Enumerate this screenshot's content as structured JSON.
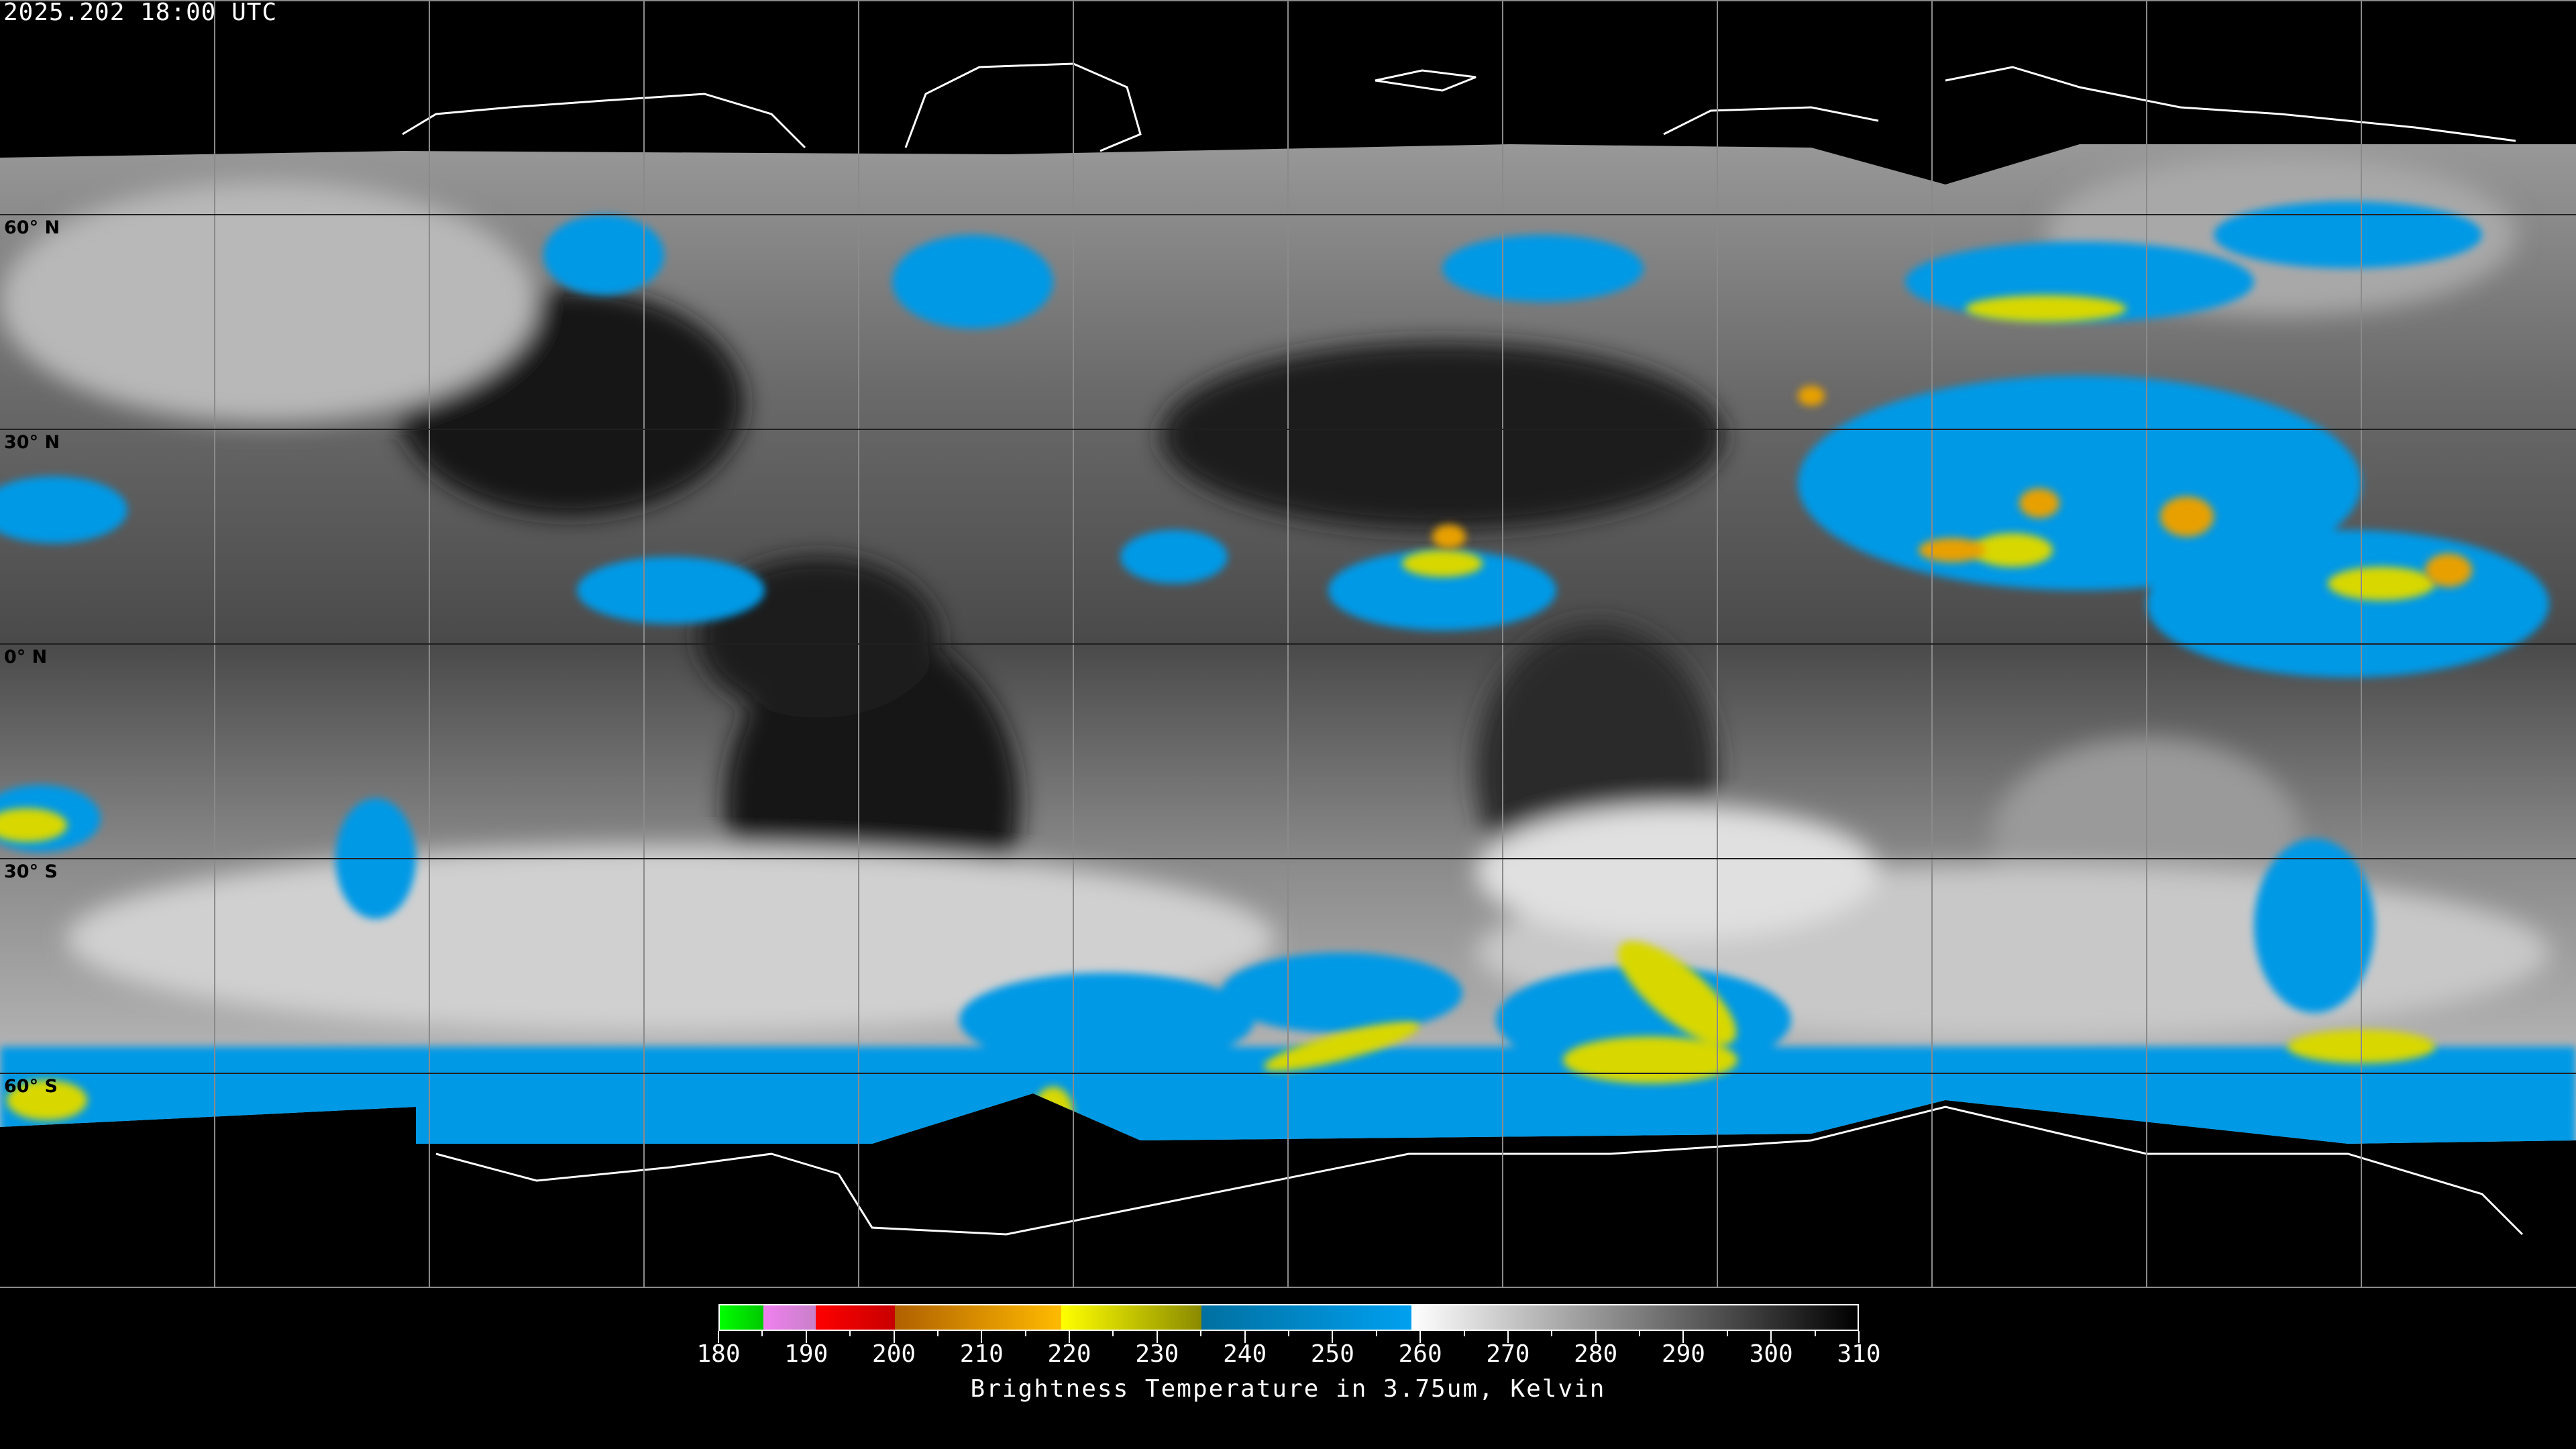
{
  "header": {
    "timestamp": "2025.202 18:00 UTC"
  },
  "map": {
    "projection": "equirectangular",
    "latitude_labels": [
      "60° N",
      "30° N",
      "0° N",
      "30° S",
      "60° S"
    ],
    "latitude_label_values": [
      60,
      30,
      0,
      -30,
      -60
    ],
    "gridline_spacing_degrees": 30,
    "gridline_color": "#8a8a8a",
    "coastline_color": "#ffffff"
  },
  "colorbar": {
    "title": "Brightness Temperature in 3.75um, Kelvin",
    "min": 180,
    "max": 310,
    "tick_labels": [
      "180",
      "190",
      "200",
      "210",
      "220",
      "230",
      "240",
      "250",
      "260",
      "270",
      "280",
      "290",
      "300",
      "310"
    ],
    "segments": [
      {
        "from": 180,
        "to": 185,
        "start_color": "#00ff00",
        "end_color": "#00c800"
      },
      {
        "from": 185,
        "to": 191,
        "start_color": "#f080f0",
        "end_color": "#c880c8"
      },
      {
        "from": 191,
        "to": 200,
        "start_color": "#ff0000",
        "end_color": "#c80000"
      },
      {
        "from": 200,
        "to": 219,
        "start_color": "#b06000",
        "end_color": "#ffbb00"
      },
      {
        "from": 219,
        "to": 235,
        "start_color": "#ffff00",
        "end_color": "#8a8a00"
      },
      {
        "from": 235,
        "to": 259,
        "start_color": "#0070a0",
        "end_color": "#00a0f0"
      },
      {
        "from": 259,
        "to": 310,
        "start_color": "#ffffff",
        "end_color": "#000000"
      }
    ]
  }
}
